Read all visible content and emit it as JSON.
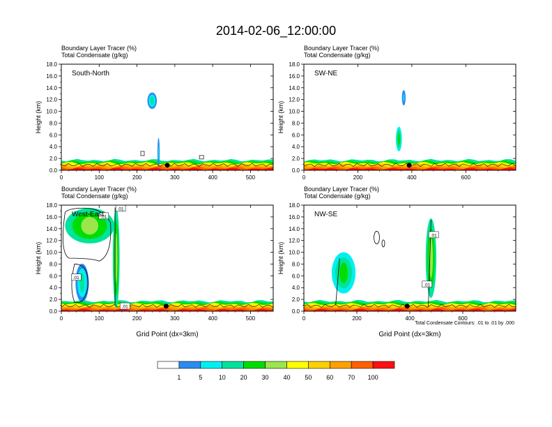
{
  "title": "2014-02-06_12:00:00",
  "colors": {
    "scale": [
      "#ffffff",
      "#2a8cf0",
      "#00f0f0",
      "#00e39a",
      "#00dd00",
      "#9ae64b",
      "#ffff00",
      "#ffd000",
      "#ffa000",
      "#ff6000",
      "#ff1010"
    ],
    "contour": "#000000",
    "marker": "#000000"
  },
  "colorbar": {
    "labels": [
      "1",
      "5",
      "10",
      "20",
      "30",
      "40",
      "50",
      "60",
      "70",
      "100"
    ]
  },
  "footnote": "Total Condensate Contours: .01 to .01 by .000",
  "chart_data": [
    {
      "type": "heatmap",
      "panel": "South-North",
      "line1": "Boundary Layer Tracer   (%)",
      "line2": "Total Condensate   (g/kg)",
      "ylabel": "Height (km)",
      "xlabel": "",
      "xlim": [
        0,
        560
      ],
      "ylim": [
        0,
        18
      ],
      "xticks": [
        0,
        100,
        200,
        300,
        400,
        500
      ],
      "yticks": [
        "0.0",
        "2.0",
        "4.0",
        "6.0",
        "8.0",
        "10.0",
        "12.0",
        "14.0",
        "16.0",
        "18.0"
      ],
      "marker_x": 280,
      "contour_labels": [],
      "features": [
        {
          "x": 240,
          "y": 11.8,
          "w": 25,
          "h": 2.8,
          "level": 3
        },
        {
          "x": 257,
          "y": 3.0,
          "w": 6,
          "h": 5.0,
          "level": 2
        }
      ]
    },
    {
      "type": "heatmap",
      "panel": "SW-NE",
      "line1": "Boundary Layer Tracer   (%)",
      "line2": "Total Condensate   (g/kg)",
      "ylabel": "Height (km)",
      "xlabel": "",
      "xlim": [
        0,
        785
      ],
      "ylim": [
        0,
        18
      ],
      "xticks": [
        0,
        200,
        400,
        600
      ],
      "yticks": [
        "0.0",
        "2.0",
        "4.0",
        "6.0",
        "8.0",
        "10.0",
        "12.0",
        "14.0",
        "16.0",
        "18.0"
      ],
      "marker_x": 390,
      "contour_labels": [],
      "features": [
        {
          "x": 370,
          "y": 12.3,
          "w": 14,
          "h": 2.6,
          "level": 2
        },
        {
          "x": 352,
          "y": 5.3,
          "w": 22,
          "h": 4.2,
          "level": 4
        }
      ]
    },
    {
      "type": "heatmap",
      "panel": "West-East",
      "line1": "Boundary Layer Tracer   (%)",
      "line2": "Total Condensate   (g/kg)",
      "ylabel": "Height (km)",
      "xlabel": "Grid Point (dx=3km)",
      "xlim": [
        0,
        560
      ],
      "ylim": [
        0,
        18
      ],
      "xticks": [
        0,
        100,
        200,
        300,
        400,
        500
      ],
      "yticks": [
        "0.0",
        "2.0",
        "4.0",
        "6.0",
        "8.0",
        "10.0",
        "12.0",
        "14.0",
        "16.0",
        "18.0"
      ],
      "marker_x": 277,
      "contour_labels": [
        ".01",
        ".01",
        ".01",
        ".01"
      ],
      "features": [
        {
          "x": 75,
          "y": 14.5,
          "w": 130,
          "h": 6.0,
          "level": 5
        },
        {
          "x": 55,
          "y": 4.8,
          "w": 35,
          "h": 6.5,
          "level": 3
        },
        {
          "x": 145,
          "y": 9.0,
          "w": 18,
          "h": 17.0,
          "level": 5
        }
      ]
    },
    {
      "type": "heatmap",
      "panel": "NW-SE",
      "line1": "Boundary Layer Tracer   (%)",
      "line2": "Total Condensate   (g/kg)",
      "ylabel": "Height (km)",
      "xlabel": "Grid Point (dx=3km)",
      "xlim": [
        0,
        800
      ],
      "ylim": [
        0,
        18
      ],
      "xticks": [
        0,
        200,
        400,
        600
      ],
      "yticks": [
        "0.0",
        "2.0",
        "4.0",
        "6.0",
        "8.0",
        "10.0",
        "12.0",
        "14.0",
        "16.0",
        "18.0"
      ],
      "marker_x": 390,
      "contour_labels": [
        ".01",
        ".01"
      ],
      "features": [
        {
          "x": 150,
          "y": 6.5,
          "w": 90,
          "h": 7.0,
          "level": 4
        },
        {
          "x": 480,
          "y": 9.0,
          "w": 40,
          "h": 13.5,
          "level": 5
        }
      ]
    }
  ]
}
